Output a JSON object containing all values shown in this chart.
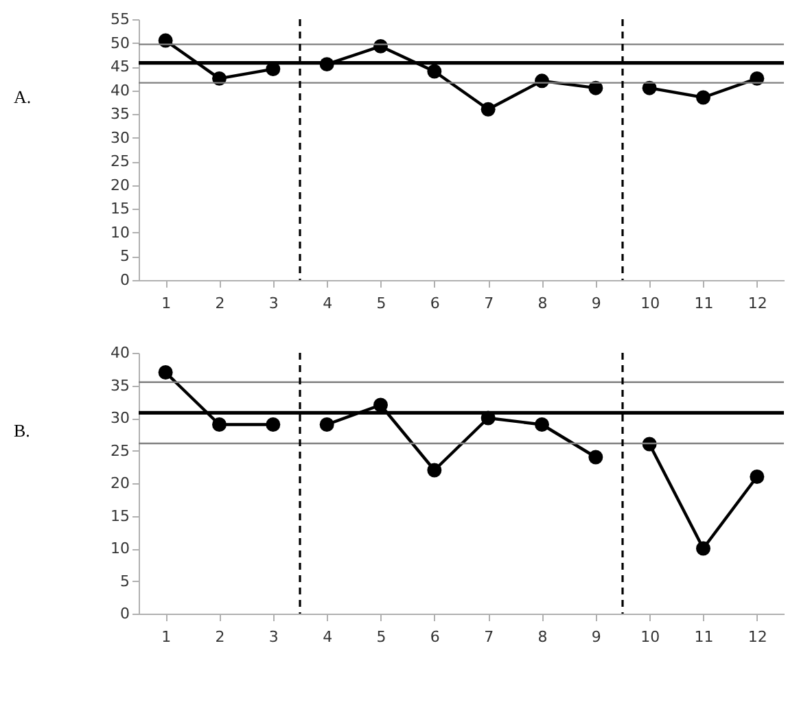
{
  "chart_data": [
    {
      "type": "line",
      "title": "A.",
      "x": [
        1,
        2,
        3,
        4,
        5,
        6,
        7,
        8,
        9,
        10,
        11,
        12
      ],
      "xlim": [
        0.5,
        12.5
      ],
      "xticks": [
        1,
        2,
        3,
        4,
        5,
        6,
        7,
        8,
        9,
        10,
        11,
        12
      ],
      "ylim": [
        0,
        55
      ],
      "yticks": [
        0,
        5,
        10,
        15,
        20,
        25,
        30,
        35,
        40,
        45,
        50,
        55
      ],
      "grid": false,
      "legend": false,
      "marker": "circle",
      "line_style": "solid",
      "series": [
        {
          "color": "#000000",
          "values": [
            50.5,
            42.5,
            44.5,
            null,
            null,
            null,
            null,
            null,
            null,
            null,
            null,
            null
          ]
        },
        {
          "color": "#000000",
          "values": [
            null,
            null,
            null,
            45.5,
            49.3,
            44,
            36,
            42,
            40.5,
            null,
            null,
            null
          ]
        },
        {
          "color": "#000000",
          "values": [
            null,
            null,
            null,
            null,
            null,
            null,
            null,
            null,
            null,
            40.5,
            38.5,
            42.5
          ]
        }
      ],
      "ref_lines": [
        {
          "axis": "y",
          "value": 49.7,
          "color": "#808080",
          "line_style": "solid"
        },
        {
          "axis": "y",
          "value": 45.8,
          "color": "#000000",
          "line_style": "solid"
        },
        {
          "axis": "y",
          "value": 41.6,
          "color": "#808080",
          "line_style": "solid"
        },
        {
          "axis": "x",
          "value": 3.5,
          "color": "#000000",
          "line_style": "dashed"
        },
        {
          "axis": "x",
          "value": 9.5,
          "color": "#000000",
          "line_style": "dashed"
        }
      ]
    },
    {
      "type": "line",
      "title": "B.",
      "x": [
        1,
        2,
        3,
        4,
        5,
        6,
        7,
        8,
        9,
        10,
        11,
        12
      ],
      "xlim": [
        0.5,
        12.5
      ],
      "xticks": [
        1,
        2,
        3,
        4,
        5,
        6,
        7,
        8,
        9,
        10,
        11,
        12
      ],
      "ylim": [
        0,
        40
      ],
      "yticks": [
        0,
        5,
        10,
        15,
        20,
        25,
        30,
        35,
        40
      ],
      "grid": false,
      "legend": false,
      "marker": "circle",
      "line_style": "solid",
      "series": [
        {
          "color": "#000000",
          "values": [
            37,
            29,
            29,
            null,
            null,
            null,
            null,
            null,
            null,
            null,
            null,
            null
          ]
        },
        {
          "color": "#000000",
          "values": [
            null,
            null,
            null,
            29,
            32,
            22,
            30,
            29,
            24,
            null,
            null,
            null
          ]
        },
        {
          "color": "#000000",
          "values": [
            null,
            null,
            null,
            null,
            null,
            null,
            null,
            null,
            null,
            26,
            10,
            21
          ]
        }
      ],
      "ref_lines": [
        {
          "axis": "y",
          "value": 35.5,
          "color": "#808080",
          "line_style": "solid"
        },
        {
          "axis": "y",
          "value": 30.8,
          "color": "#000000",
          "line_style": "solid"
        },
        {
          "axis": "y",
          "value": 26.1,
          "color": "#808080",
          "line_style": "solid"
        },
        {
          "axis": "x",
          "value": 3.5,
          "color": "#000000",
          "line_style": "dashed"
        },
        {
          "axis": "x",
          "value": 9.5,
          "color": "#000000",
          "line_style": "dashed"
        }
      ]
    }
  ]
}
